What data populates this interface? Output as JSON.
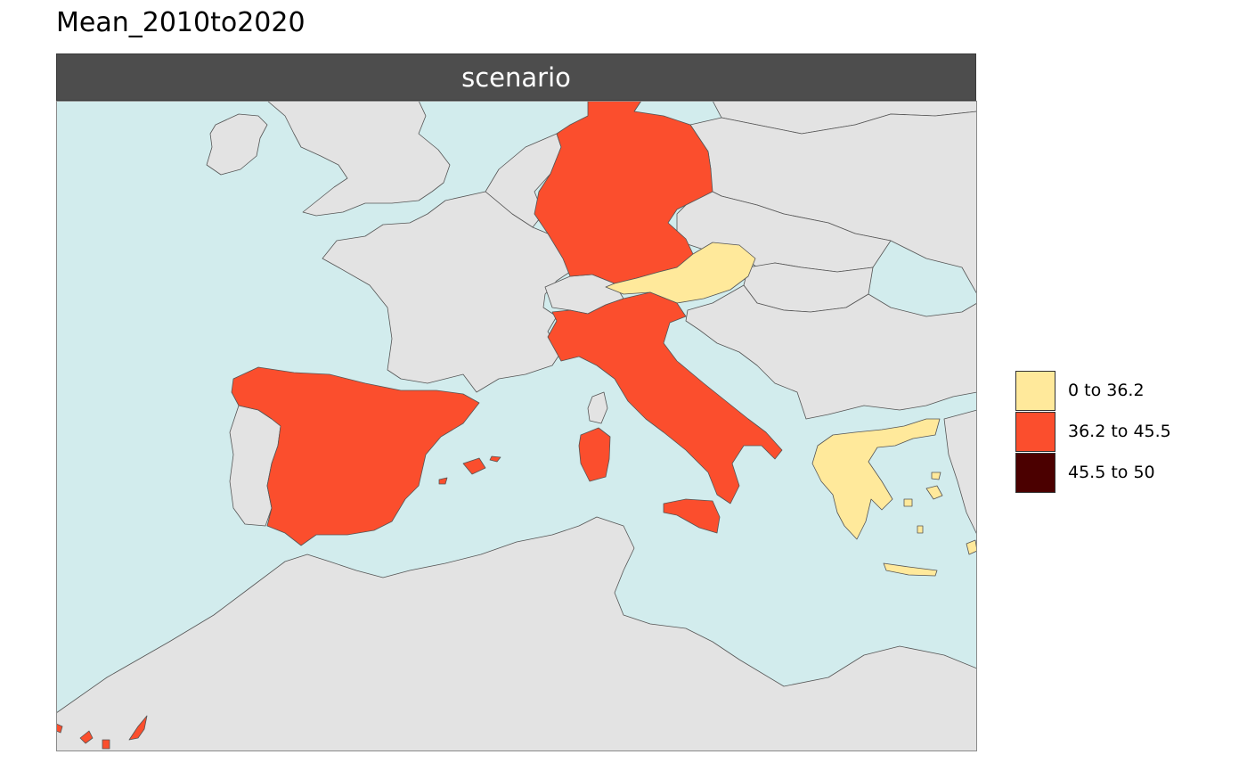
{
  "title": "Mean_2010to2020",
  "panel": {
    "label": "scenario"
  },
  "colors": {
    "sea": "#d2eced",
    "land_no_data": "#e3e3e3",
    "border": "#555555",
    "strip": "#4d4d4d"
  },
  "legend": {
    "items": [
      {
        "label": "0 to 36.2",
        "color": "#ffe99b"
      },
      {
        "label": "36.2 to 45.5",
        "color": "#fb4e2d"
      },
      {
        "label": "45.5 to 50",
        "color": "#4b0000"
      }
    ]
  },
  "regions": [
    {
      "name": "Germany",
      "class": "36.2 to 45.5"
    },
    {
      "name": "Italy",
      "class": "36.2 to 45.5"
    },
    {
      "name": "Spain",
      "class": "36.2 to 45.5"
    },
    {
      "name": "Austria",
      "class": "0 to 36.2"
    },
    {
      "name": "Greece",
      "class": "0 to 36.2"
    }
  ]
}
